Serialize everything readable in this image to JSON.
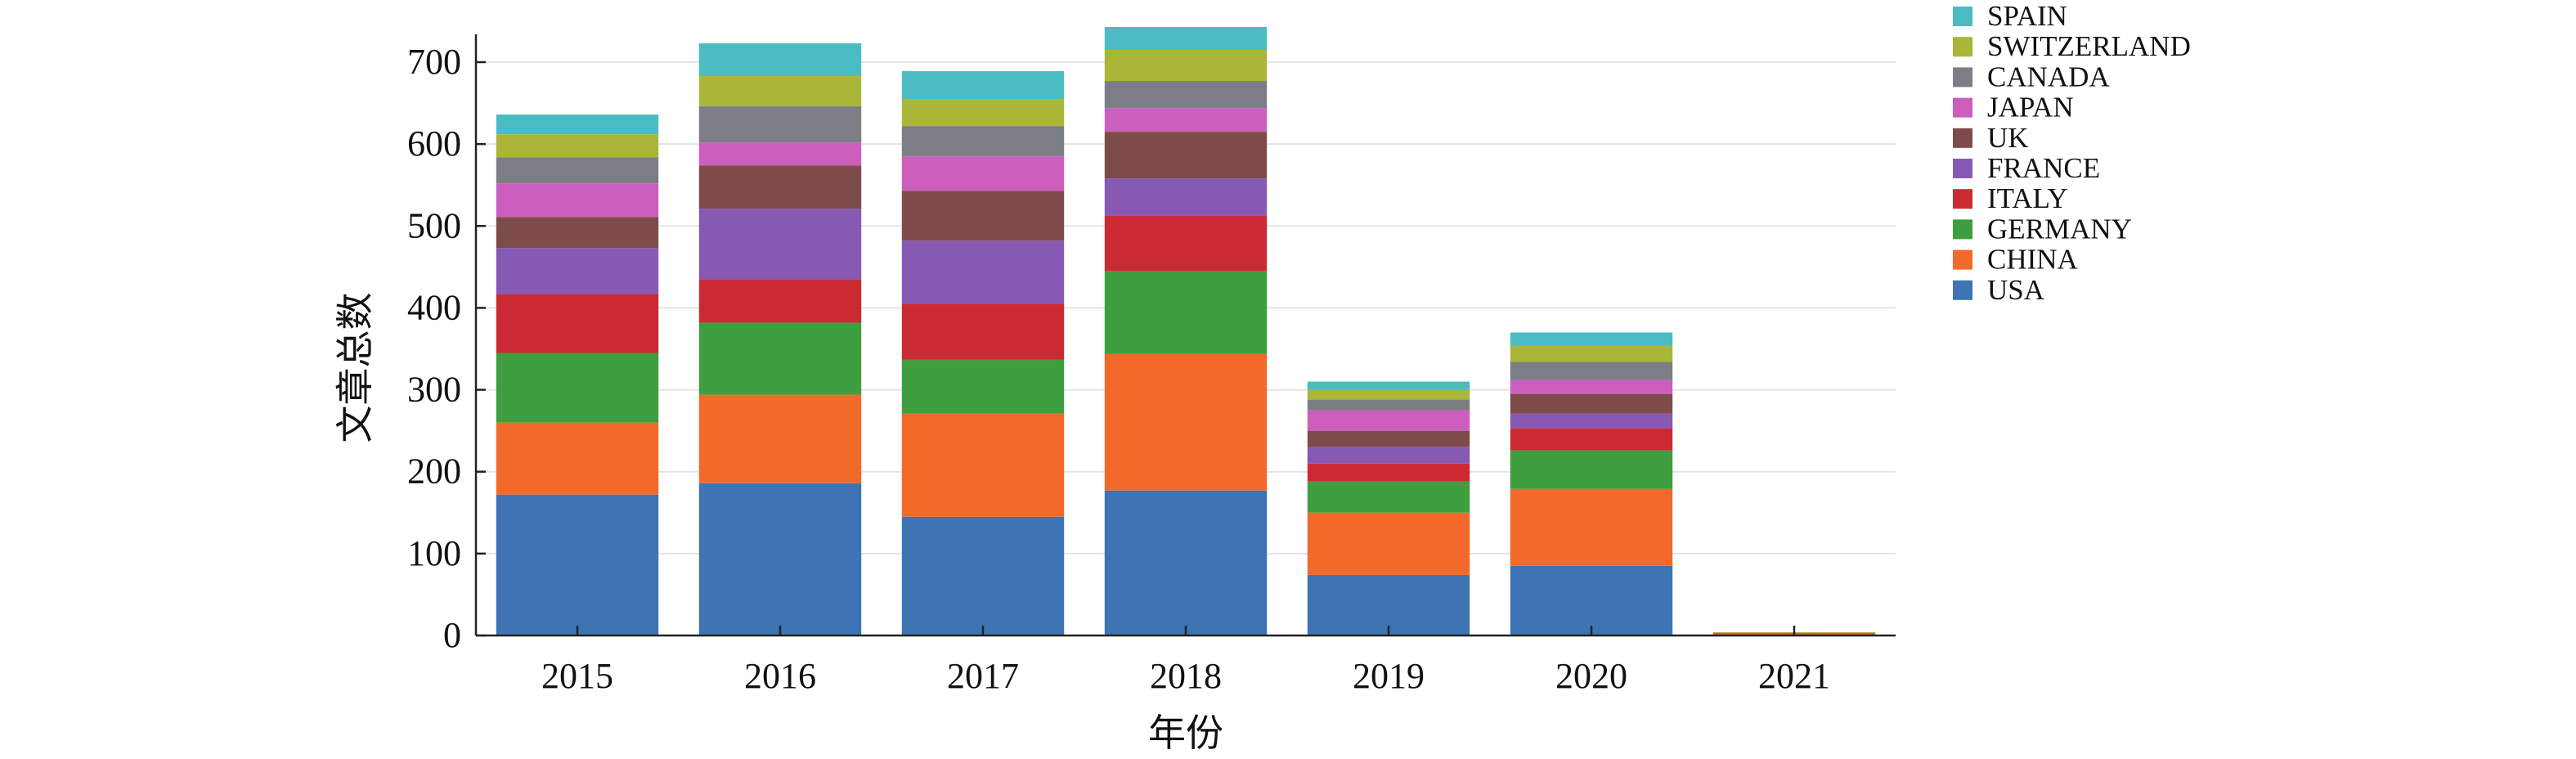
{
  "chart_data": {
    "type": "bar",
    "stacked": true,
    "title": "",
    "xlabel": "年份",
    "ylabel": "文章总数",
    "categories": [
      "2015",
      "2016",
      "2017",
      "2018",
      "2019",
      "2020",
      "2021"
    ],
    "ylim": [
      0,
      700
    ],
    "yticks": [
      "0",
      "100",
      "200",
      "300",
      "400",
      "500",
      "600",
      "700"
    ],
    "grid": true,
    "legend_position": "right",
    "series": [
      {
        "name": "USA",
        "color": "#3e74b3",
        "values": [
          172,
          186,
          145,
          177,
          74,
          85,
          1
        ]
      },
      {
        "name": "CHINA",
        "color": "#f26a29",
        "values": [
          88,
          108,
          126,
          167,
          76,
          94,
          1
        ]
      },
      {
        "name": "GERMANY",
        "color": "#3f9e3f",
        "values": [
          85,
          88,
          66,
          101,
          38,
          47,
          1
        ]
      },
      {
        "name": "ITALY",
        "color": "#cc2a32",
        "values": [
          72,
          53,
          68,
          68,
          22,
          27,
          0
        ]
      },
      {
        "name": "FRANCE",
        "color": "#8659b5",
        "values": [
          56,
          86,
          77,
          45,
          20,
          18,
          0
        ]
      },
      {
        "name": "UK",
        "color": "#7e4b4b",
        "values": [
          38,
          53,
          61,
          57,
          20,
          24,
          0
        ]
      },
      {
        "name": "JAPAN",
        "color": "#cc5fbd",
        "values": [
          41,
          28,
          42,
          29,
          25,
          17,
          0
        ]
      },
      {
        "name": "CANADA",
        "color": "#7b7e85",
        "values": [
          32,
          44,
          37,
          33,
          13,
          22,
          0
        ]
      },
      {
        "name": "SWITZERLAND",
        "color": "#a9b637",
        "values": [
          28,
          37,
          33,
          38,
          12,
          20,
          1
        ]
      },
      {
        "name": "SPAIN",
        "color": "#4bbcc4",
        "values": [
          24,
          40,
          34,
          28,
          10,
          16,
          0
        ]
      }
    ]
  }
}
